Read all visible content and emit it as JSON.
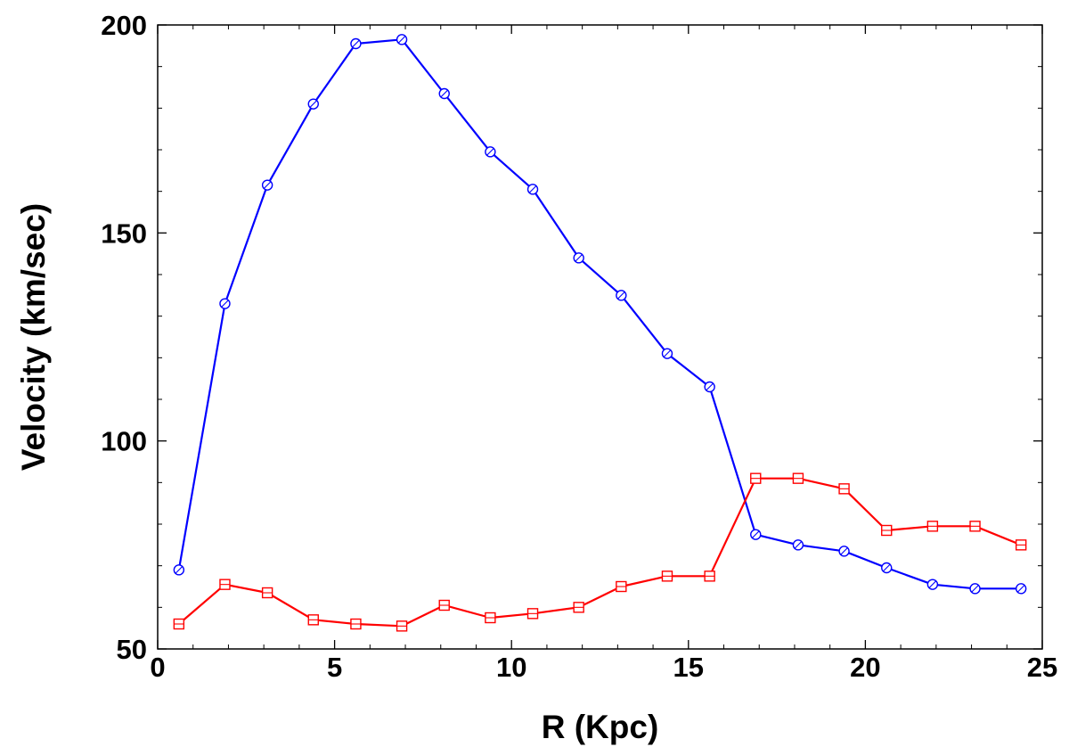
{
  "chart_data": {
    "type": "line",
    "title": "",
    "xlabel": "R (Kpc)",
    "ylabel": "Velocity (km/sec)",
    "xlim": [
      0,
      25
    ],
    "ylim": [
      50,
      200
    ],
    "x_ticks": [
      0,
      5,
      10,
      15,
      20,
      25
    ],
    "y_ticks": [
      50,
      100,
      150,
      200
    ],
    "x_tick_labels": [
      "0",
      "5",
      "10",
      "15",
      "20",
      "25"
    ],
    "y_tick_labels": [
      "50",
      "100",
      "150",
      "200"
    ],
    "x_minor_step": 1,
    "y_minor_step": 10,
    "grid": false,
    "legend": "none",
    "x": [
      0.6,
      1.9,
      3.1,
      4.4,
      5.6,
      6.9,
      8.1,
      9.4,
      10.6,
      11.9,
      13.1,
      14.4,
      15.6,
      16.9,
      18.1,
      19.4,
      20.6,
      21.9,
      23.1,
      24.4
    ],
    "series": [
      {
        "color": "#0000ff",
        "marker": "circle",
        "values": [
          69,
          133,
          161.5,
          181,
          195.5,
          196.5,
          183.5,
          169.5,
          160.5,
          144,
          135,
          121,
          113,
          77.5,
          75,
          73.5,
          69.5,
          65.5,
          64.5,
          64.5
        ]
      },
      {
        "color": "#ff0000",
        "marker": "square",
        "values": [
          56,
          65.5,
          63.5,
          57,
          56,
          55.5,
          60.5,
          57.5,
          58.5,
          60,
          65,
          67.5,
          67.5,
          91,
          91,
          88.5,
          78.5,
          79.5,
          79.5,
          75
        ]
      }
    ]
  }
}
